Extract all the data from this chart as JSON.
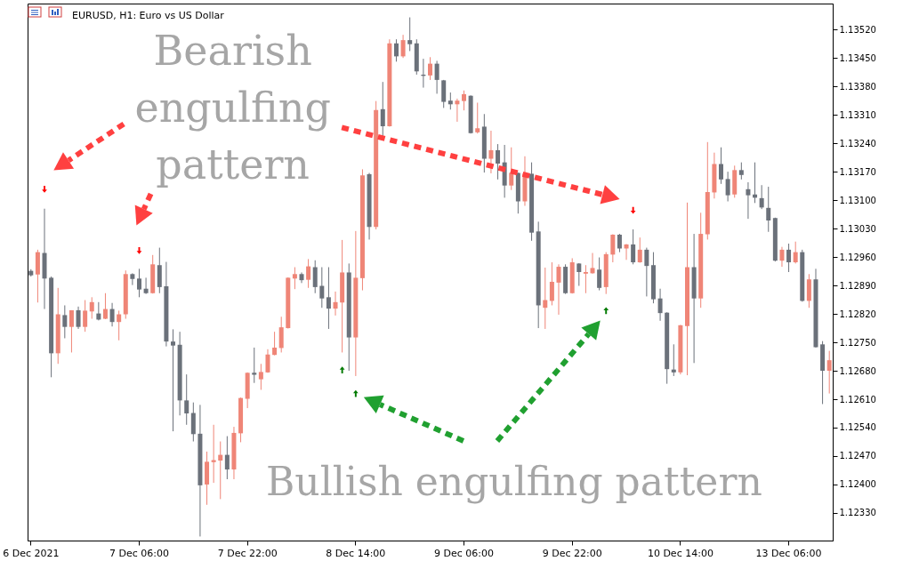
{
  "chart_data": {
    "type": "candlestick",
    "title": "EURUSD, H1:  Euro vs US Dollar",
    "categories": [
      "6 Dec 2021",
      null,
      null,
      null,
      null,
      null,
      null,
      null,
      null,
      null,
      null,
      null,
      null,
      null,
      null,
      null,
      "7 Dec 06:00",
      null,
      null,
      null,
      null,
      null,
      null,
      null,
      null,
      null,
      null,
      null,
      null,
      null,
      null,
      null,
      "7 Dec 22:00",
      null,
      null,
      null,
      null,
      null,
      null,
      null,
      null,
      null,
      null,
      null,
      null,
      null,
      null,
      null,
      "8 Dec 14:00",
      null,
      null,
      null,
      null,
      null,
      null,
      null,
      null,
      null,
      null,
      null,
      null,
      null,
      null,
      null,
      "9 Dec 06:00",
      null,
      null,
      null,
      null,
      null,
      null,
      null,
      null,
      null,
      null,
      null,
      null,
      null,
      null,
      null,
      "9 Dec 22:00",
      null,
      null,
      null,
      null,
      null,
      null,
      null,
      null,
      null,
      null,
      null,
      null,
      null,
      null,
      null,
      "10 Dec 14:00",
      null,
      null,
      null,
      null,
      null,
      null,
      null,
      null,
      null,
      null,
      null,
      null,
      null,
      null,
      null,
      "13 Dec 06:00",
      null,
      null,
      null,
      null,
      null,
      null
    ],
    "ohlc": [
      [
        1.12926,
        1.1293,
        1.12912,
        1.12915
      ],
      [
        1.12917,
        1.12978,
        1.12848,
        1.12972
      ],
      [
        1.1297,
        1.13079,
        1.12832,
        1.12907
      ],
      [
        1.12909,
        1.12912,
        1.12664,
        1.12723
      ],
      [
        1.12723,
        1.12884,
        1.12697,
        1.12819
      ],
      [
        1.12817,
        1.12841,
        1.1276,
        1.12788
      ],
      [
        1.12788,
        1.12829,
        1.12725,
        1.12829
      ],
      [
        1.12829,
        1.12838,
        1.12783,
        1.12788
      ],
      [
        1.12788,
        1.12854,
        1.12776,
        1.12828
      ],
      [
        1.12826,
        1.12861,
        1.12808,
        1.12849
      ],
      [
        1.12821,
        1.12849,
        1.12804,
        1.12806
      ],
      [
        1.12808,
        1.12871,
        1.12807,
        1.12832
      ],
      [
        1.12832,
        1.12847,
        1.12789,
        1.128
      ],
      [
        1.128,
        1.12828,
        1.12755,
        1.12819
      ],
      [
        1.12819,
        1.12927,
        1.12808,
        1.12918
      ],
      [
        1.12918,
        1.1292,
        1.12891,
        1.12906
      ],
      [
        1.12907,
        1.12931,
        1.12861,
        1.1288
      ],
      [
        1.12882,
        1.12909,
        1.12869,
        1.12871
      ],
      [
        1.12871,
        1.12965,
        1.1287,
        1.12942
      ],
      [
        1.1294,
        1.12983,
        1.12871,
        1.12886
      ],
      [
        1.12888,
        1.12948,
        1.1274,
        1.12752
      ],
      [
        1.12752,
        1.12782,
        1.12531,
        1.12742
      ],
      [
        1.12744,
        1.12776,
        1.1257,
        1.12607
      ],
      [
        1.12607,
        1.12671,
        1.12547,
        1.12575
      ],
      [
        1.12576,
        1.12602,
        1.12506,
        1.12524
      ],
      [
        1.12525,
        1.12596,
        1.12272,
        1.12398
      ],
      [
        1.124,
        1.12481,
        1.1235,
        1.12456
      ],
      [
        1.12455,
        1.12547,
        1.12404,
        1.1246
      ],
      [
        1.12459,
        1.12506,
        1.12364,
        1.12473
      ],
      [
        1.12473,
        1.12519,
        1.12413,
        1.12437
      ],
      [
        1.12437,
        1.12542,
        1.12413,
        1.12527
      ],
      [
        1.12526,
        1.12614,
        1.12504,
        1.12613
      ],
      [
        1.12611,
        1.12676,
        1.12588,
        1.12675
      ],
      [
        1.12675,
        1.12737,
        1.1265,
        1.1267
      ],
      [
        1.12659,
        1.12697,
        1.12633,
        1.12677
      ],
      [
        1.12676,
        1.12733,
        1.12675,
        1.1272
      ],
      [
        1.12719,
        1.12776,
        1.12718,
        1.12737
      ],
      [
        1.12736,
        1.12813,
        1.12725,
        1.12787
      ],
      [
        1.12785,
        1.1291,
        1.12784,
        1.12909
      ],
      [
        1.12907,
        1.12935,
        1.12881,
        1.12918
      ],
      [
        1.12918,
        1.12922,
        1.12896,
        1.12903
      ],
      [
        1.12904,
        1.12955,
        1.12884,
        1.12937
      ],
      [
        1.12935,
        1.12952,
        1.12871,
        1.12886
      ],
      [
        1.12889,
        1.12935,
        1.12835,
        1.12858
      ],
      [
        1.12861,
        1.12935,
        1.12783,
        1.12833
      ],
      [
        1.12833,
        1.12875,
        1.12816,
        1.12849
      ],
      [
        1.12848,
        1.13002,
        1.12725,
        1.12922
      ],
      [
        1.12922,
        1.12944,
        1.1268,
        1.12762
      ],
      [
        1.12762,
        1.13024,
        1.12667,
        1.12909
      ],
      [
        1.12908,
        1.13176,
        1.12878,
        1.13161
      ],
      [
        1.13164,
        1.13167,
        1.13003,
        1.13034
      ],
      [
        1.13034,
        1.13344,
        1.13028,
        1.13322
      ],
      [
        1.13324,
        1.13391,
        1.13258,
        1.13282
      ],
      [
        1.13282,
        1.13496,
        1.13281,
        1.13486
      ],
      [
        1.13486,
        1.13496,
        1.13441,
        1.13454
      ],
      [
        1.13454,
        1.13507,
        1.1345,
        1.13494
      ],
      [
        1.13494,
        1.1355,
        1.13467,
        1.13484
      ],
      [
        1.13486,
        1.13496,
        1.13409,
        1.13417
      ],
      [
        1.13409,
        1.13448,
        1.13377,
        1.13406
      ],
      [
        1.13407,
        1.13452,
        1.13396,
        1.13436
      ],
      [
        1.13436,
        1.13443,
        1.13362,
        1.13396
      ],
      [
        1.13395,
        1.13396,
        1.13327,
        1.13342
      ],
      [
        1.13345,
        1.13365,
        1.13323,
        1.13336
      ],
      [
        1.13336,
        1.1335,
        1.13293,
        1.13345
      ],
      [
        1.13344,
        1.1337,
        1.13321,
        1.13361
      ],
      [
        1.13357,
        1.13358,
        1.13264,
        1.13265
      ],
      [
        1.13267,
        1.1334,
        1.13264,
        1.13277
      ],
      [
        1.13281,
        1.13312,
        1.13168,
        1.13202
      ],
      [
        1.13202,
        1.13271,
        1.13166,
        1.13223
      ],
      [
        1.13223,
        1.13238,
        1.13151,
        1.1319
      ],
      [
        1.13193,
        1.13236,
        1.13106,
        1.13136
      ],
      [
        1.13136,
        1.1323,
        1.13125,
        1.13167
      ],
      [
        1.13167,
        1.13168,
        1.13067,
        1.13097
      ],
      [
        1.13097,
        1.13208,
        1.13086,
        1.13165
      ],
      [
        1.13165,
        1.13193,
        1.13,
        1.1302
      ],
      [
        1.13023,
        1.13047,
        1.12785,
        1.12841
      ],
      [
        1.12835,
        1.12934,
        1.12783,
        1.12854
      ],
      [
        1.12852,
        1.12947,
        1.12841,
        1.12899
      ],
      [
        1.12897,
        1.12942,
        1.12818,
        1.12936
      ],
      [
        1.12936,
        1.12942,
        1.12869,
        1.12871
      ],
      [
        1.12871,
        1.12957,
        1.1287,
        1.12947
      ],
      [
        1.12944,
        1.12945,
        1.12889,
        1.12923
      ],
      [
        1.12919,
        1.1294,
        1.12871,
        1.12923
      ],
      [
        1.1292,
        1.1297,
        1.12919,
        1.12933
      ],
      [
        1.12929,
        1.12959,
        1.12878,
        1.12884
      ],
      [
        1.12886,
        1.12972,
        1.12869,
        1.12967
      ],
      [
        1.12966,
        1.13016,
        1.12947,
        1.13015
      ],
      [
        1.13015,
        1.13017,
        1.12972,
        1.12981
      ],
      [
        1.12981,
        1.12992,
        1.12953,
        1.12991
      ],
      [
        1.12991,
        1.13028,
        1.12942,
        1.12947
      ],
      [
        1.12947,
        1.13008,
        1.12946,
        1.12978
      ],
      [
        1.12978,
        1.12983,
        1.12863,
        1.12938
      ],
      [
        1.1294,
        1.12972,
        1.12846,
        1.12856
      ],
      [
        1.12858,
        1.12882,
        1.12803,
        1.12822
      ],
      [
        1.12823,
        1.12824,
        1.12648,
        1.12684
      ],
      [
        1.12683,
        1.12745,
        1.12667,
        1.12676
      ],
      [
        1.12676,
        1.12793,
        1.12671,
        1.12792
      ],
      [
        1.1279,
        1.13094,
        1.12669,
        1.12935
      ],
      [
        1.12935,
        1.13017,
        1.12699,
        1.12858
      ],
      [
        1.12858,
        1.13069,
        1.12835,
        1.13017
      ],
      [
        1.13016,
        1.13243,
        1.13003,
        1.1312
      ],
      [
        1.13119,
        1.13217,
        1.13104,
        1.13189
      ],
      [
        1.13189,
        1.1323,
        1.1314,
        1.13151
      ],
      [
        1.13152,
        1.1317,
        1.13097,
        1.13112
      ],
      [
        1.13114,
        1.13185,
        1.13106,
        1.13174
      ],
      [
        1.13174,
        1.13193,
        1.13151,
        1.13162
      ],
      [
        1.13127,
        1.13144,
        1.13054,
        1.13112
      ],
      [
        1.13114,
        1.13193,
        1.13093,
        1.13106
      ],
      [
        1.13105,
        1.13137,
        1.13078,
        1.13082
      ],
      [
        1.13081,
        1.13133,
        1.13022,
        1.1305
      ],
      [
        1.13056,
        1.13057,
        1.12949,
        1.12951
      ],
      [
        1.12951,
        1.12985,
        1.12936,
        1.12978
      ],
      [
        1.12978,
        1.12993,
        1.12923,
        1.12947
      ],
      [
        1.12947,
        1.12998,
        1.12944,
        1.12972
      ],
      [
        1.12972,
        1.12978,
        1.1285,
        1.12852
      ],
      [
        1.12852,
        1.12918,
        1.12835,
        1.12905
      ],
      [
        1.12905,
        1.12931,
        1.12737,
        1.12738
      ],
      [
        1.12745,
        1.12753,
        1.12598,
        1.1268
      ],
      [
        1.1268,
        1.12729,
        1.12624,
        1.12706
      ]
    ],
    "colors": [
      "#6b717a",
      "#ef8577",
      "#6b717a",
      "#6b717a",
      "#ef8577",
      "#6b717a",
      "#ef8577",
      "#6b717a",
      "#ef8577",
      "#ef8577",
      "#6b717a",
      "#ef8577",
      "#6b717a",
      "#ef8577",
      "#ef8577",
      "#6b717a",
      "#6b717a",
      "#6b717a",
      "#ef8577",
      "#6b717a",
      "#6b717a",
      "#6b717a",
      "#6b717a",
      "#6b717a",
      "#6b717a",
      "#6b717a",
      "#ef8577",
      "#ef8577",
      "#ef8577",
      "#6b717a",
      "#ef8577",
      "#ef8577",
      "#ef8577",
      "#6b717a",
      "#ef8577",
      "#ef8577",
      "#ef8577",
      "#ef8577",
      "#ef8577",
      "#ef8577",
      "#6b717a",
      "#ef8577",
      "#6b717a",
      "#6b717a",
      "#6b717a",
      "#ef8577",
      "#ef8577",
      "#6b717a",
      "#ef8577",
      "#ef8577",
      "#6b717a",
      "#ef8577",
      "#6b717a",
      "#ef8577",
      "#6b717a",
      "#ef8577",
      "#6b717a",
      "#6b717a",
      "#6b717a",
      "#ef8577",
      "#6b717a",
      "#6b717a",
      "#6b717a",
      "#ef8577",
      "#ef8577",
      "#6b717a",
      "#ef8577",
      "#6b717a",
      "#ef8577",
      "#6b717a",
      "#6b717a",
      "#ef8577",
      "#6b717a",
      "#ef8577",
      "#6b717a",
      "#6b717a",
      "#ef8577",
      "#ef8577",
      "#ef8577",
      "#6b717a",
      "#ef8577",
      "#6b717a",
      "#ef8577",
      "#ef8577",
      "#6b717a",
      "#ef8577",
      "#ef8577",
      "#6b717a",
      "#ef8577",
      "#6b717a",
      "#ef8577",
      "#6b717a",
      "#6b717a",
      "#6b717a",
      "#6b717a",
      "#6b717a",
      "#ef8577",
      "#ef8577",
      "#6b717a",
      "#ef8577",
      "#ef8577",
      "#ef8577",
      "#6b717a",
      "#6b717a",
      "#ef8577",
      "#6b717a",
      "#6b717a",
      "#6b717a",
      "#6b717a",
      "#6b717a",
      "#6b717a",
      "#ef8577",
      "#6b717a",
      "#ef8577",
      "#6b717a",
      "#ef8577",
      "#6b717a",
      "#6b717a",
      "#ef8577"
    ],
    "series": [
      {
        "type": "scatter",
        "marker": "triangle",
        "color": "#ff0000",
        "values": [
          null,
          null,
          1.13127,
          null,
          null,
          null,
          null,
          null,
          null,
          null,
          null,
          null,
          null,
          null,
          null,
          null,
          1.12976,
          null,
          null,
          null,
          null,
          null,
          null,
          null,
          null,
          null,
          null,
          null,
          null,
          null,
          null,
          null,
          null,
          null,
          null,
          null,
          null,
          null,
          null,
          null,
          null,
          null,
          null,
          null,
          null,
          null,
          null,
          null,
          null,
          null,
          null,
          null,
          null,
          null,
          null,
          null,
          null,
          null,
          null,
          null,
          null,
          null,
          null,
          null,
          null,
          null,
          null,
          null,
          null,
          null,
          null,
          null,
          null,
          null,
          null,
          null,
          null,
          null,
          null,
          null,
          null,
          null,
          null,
          null,
          null,
          null,
          null,
          null,
          null,
          1.13075,
          null,
          null,
          null,
          null,
          null,
          null,
          null,
          null,
          null,
          null,
          null,
          null,
          null,
          null,
          null,
          null,
          null,
          null,
          null,
          null,
          null,
          null,
          null,
          null,
          null,
          null,
          null,
          null,
          null
        ]
      },
      {
        "type": "scatter",
        "marker": "triangle",
        "color": "#007a00",
        "values": [
          null,
          null,
          null,
          null,
          null,
          null,
          null,
          null,
          null,
          null,
          null,
          null,
          null,
          null,
          null,
          null,
          null,
          null,
          null,
          null,
          null,
          null,
          null,
          null,
          null,
          null,
          null,
          null,
          null,
          null,
          null,
          null,
          null,
          null,
          null,
          null,
          null,
          null,
          null,
          null,
          null,
          null,
          null,
          null,
          null,
          null,
          1.12682,
          null,
          1.12624,
          null,
          null,
          null,
          null,
          null,
          null,
          null,
          null,
          null,
          null,
          null,
          null,
          null,
          null,
          null,
          null,
          null,
          null,
          null,
          null,
          null,
          null,
          null,
          null,
          null,
          null,
          null,
          null,
          null,
          null,
          null,
          null,
          null,
          null,
          null,
          null,
          1.12828,
          null,
          null,
          null,
          null,
          null,
          null,
          null,
          null,
          null,
          null,
          null,
          null,
          null,
          null,
          null,
          null,
          null,
          null,
          null,
          null,
          null,
          null,
          null,
          null,
          null,
          null,
          null,
          null,
          null,
          null,
          null,
          null,
          null
        ]
      }
    ],
    "ylim": [
      1.12262,
      1.13584
    ],
    "yticks": [
      {
        "value": 1.1233,
        "label": "1.12330"
      },
      {
        "value": 1.124,
        "label": "1.12400"
      },
      {
        "value": 1.1247,
        "label": "1.12470"
      },
      {
        "value": 1.1254,
        "label": "1.12540"
      },
      {
        "value": 1.1261,
        "label": "1.12610"
      },
      {
        "value": 1.1268,
        "label": "1.12680"
      },
      {
        "value": 1.1275,
        "label": "1.12750"
      },
      {
        "value": 1.1282,
        "label": "1.12820"
      },
      {
        "value": 1.1289,
        "label": "1.12890"
      },
      {
        "value": 1.1296,
        "label": "1.12960"
      },
      {
        "value": 1.1303,
        "label": "1.13030"
      },
      {
        "value": 1.131,
        "label": "1.13100"
      },
      {
        "value": 1.1317,
        "label": "1.13170"
      },
      {
        "value": 1.1324,
        "label": "1.13240"
      },
      {
        "value": 1.1331,
        "label": "1.13310"
      },
      {
        "value": 1.1338,
        "label": "1.13380"
      },
      {
        "value": 1.1345,
        "label": "1.13450"
      },
      {
        "value": 1.1352,
        "label": "1.13520"
      }
    ],
    "annotations": [
      "Bearish\nengulfing\npattern",
      "Bullish engulfing pattern"
    ]
  }
}
